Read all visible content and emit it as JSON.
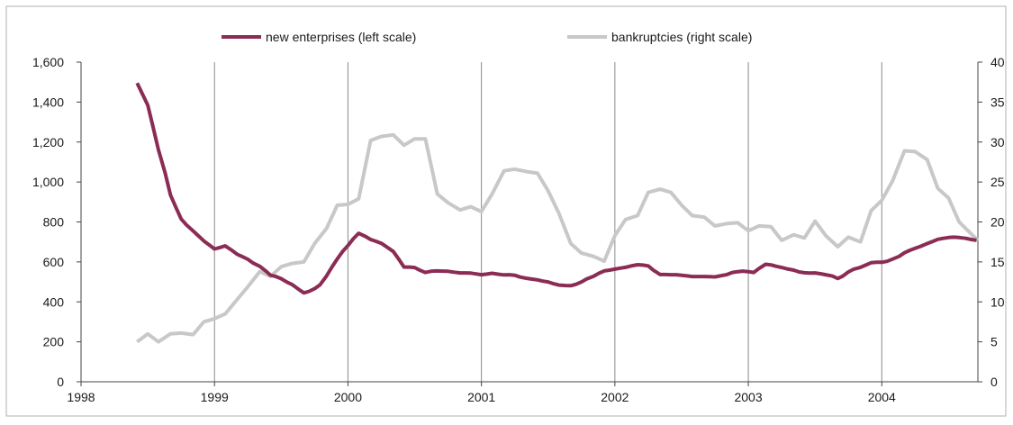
{
  "chart_data": {
    "type": "line",
    "title": "",
    "xlabel": "",
    "ylabel": "",
    "x_ticks": [
      "1998",
      "1999",
      "2000",
      "2001",
      "2002",
      "2003",
      "2004"
    ],
    "xlim": [
      1998.0,
      2004.72
    ],
    "ylim": [
      0,
      1600
    ],
    "y_ticks": [
      "0",
      "200",
      "400",
      "600",
      "800",
      "1,000",
      "1,200",
      "1,400",
      "1,600"
    ],
    "y2lim": [
      0,
      40
    ],
    "y2_ticks": [
      "0",
      "5",
      "10",
      "15",
      "20",
      "25",
      "30",
      "35",
      "40"
    ],
    "grid": "vertical",
    "legend": "top",
    "series": [
      {
        "name": "new enterprises (left scale)",
        "axis": "left",
        "color": "#8b2c55",
        "x": [
          1998.42,
          1998.46,
          1998.5,
          1998.54,
          1998.58,
          1998.63,
          1998.67,
          1998.71,
          1998.75,
          1998.79,
          1998.84,
          1998.88,
          1998.92,
          1998.96,
          1999.0,
          1999.04,
          1999.08,
          1999.13,
          1999.17,
          1999.21,
          1999.25,
          1999.29,
          1999.34,
          1999.38,
          1999.42,
          1999.46,
          1999.5,
          1999.54,
          1999.58,
          1999.63,
          1999.67,
          1999.71,
          1999.75,
          1999.79,
          1999.84,
          1999.88,
          1999.92,
          1999.96,
          2000.0,
          2000.04,
          2000.08,
          2000.13,
          2000.17,
          2000.21,
          2000.25,
          2000.29,
          2000.34,
          2000.38,
          2000.42,
          2000.46,
          2000.5,
          2000.54,
          2000.58,
          2000.63,
          2000.67,
          2000.71,
          2000.75,
          2000.79,
          2000.84,
          2000.88,
          2000.92,
          2000.96,
          2001.0,
          2001.04,
          2001.08,
          2001.13,
          2001.17,
          2001.21,
          2001.25,
          2001.29,
          2001.34,
          2001.38,
          2001.42,
          2001.46,
          2001.5,
          2001.54,
          2001.58,
          2001.63,
          2001.67,
          2001.71,
          2001.75,
          2001.79,
          2001.84,
          2001.88,
          2001.92,
          2001.96,
          2002.0,
          2002.04,
          2002.08,
          2002.13,
          2002.17,
          2002.21,
          2002.25,
          2002.29,
          2002.34,
          2002.38,
          2002.42,
          2002.46,
          2002.5,
          2002.54,
          2002.58,
          2002.63,
          2002.67,
          2002.71,
          2002.75,
          2002.79,
          2002.84,
          2002.88,
          2002.92,
          2002.96,
          2003.0,
          2003.04,
          2003.08,
          2003.13,
          2003.17,
          2003.21,
          2003.25,
          2003.29,
          2003.34,
          2003.38,
          2003.42,
          2003.46,
          2003.5,
          2003.54,
          2003.58,
          2003.63,
          2003.67,
          2003.71,
          2003.75,
          2003.79,
          2003.84,
          2003.88,
          2003.92,
          2003.96,
          2004.0,
          2004.04,
          2004.08,
          2004.13,
          2004.17,
          2004.21,
          2004.25,
          2004.29,
          2004.34,
          2004.38,
          2004.42,
          2004.46,
          2004.5,
          2004.54,
          2004.58,
          2004.63,
          2004.67,
          2004.71
        ],
        "values": [
          1495,
          1440,
          1385,
          1275,
          1160,
          1045,
          935,
          875,
          815,
          785,
          755,
          730,
          705,
          685,
          665,
          672,
          680,
          658,
          638,
          626,
          613,
          594,
          578,
          557,
          533,
          527,
          516,
          500,
          487,
          463,
          445,
          453,
          466,
          485,
          530,
          574,
          615,
          652,
          682,
          716,
          743,
          728,
          712,
          703,
          693,
          675,
          652,
          614,
          574,
          574,
          572,
          558,
          547,
          554,
          555,
          554,
          553,
          549,
          545,
          545,
          544,
          540,
          536,
          539,
          543,
          538,
          535,
          536,
          533,
          524,
          518,
          514,
          510,
          504,
          500,
          491,
          484,
          482,
          481,
          488,
          500,
          515,
          528,
          543,
          555,
          559,
          564,
          569,
          573,
          581,
          586,
          584,
          580,
          558,
          537,
          537,
          536,
          536,
          533,
          530,
          527,
          527,
          527,
          526,
          525,
          530,
          537,
          547,
          551,
          554,
          551,
          547,
          567,
          588,
          585,
          578,
          572,
          565,
          559,
          550,
          546,
          544,
          545,
          541,
          536,
          529,
          517,
          530,
          550,
          564,
          573,
          584,
          596,
          598,
          598,
          603,
          614,
          628,
          646,
          658,
          668,
          678,
          692,
          702,
          713,
          718,
          722,
          724,
          722,
          718,
          712,
          708
        ]
      },
      {
        "name": "bankruptcies (right scale)",
        "axis": "right",
        "color": "#c8c8c8",
        "x": [
          1998.42,
          1998.5,
          1998.58,
          1998.67,
          1998.75,
          1998.84,
          1998.92,
          1999.0,
          1999.08,
          1999.17,
          1999.25,
          1999.34,
          1999.42,
          1999.5,
          1999.58,
          1999.67,
          1999.75,
          1999.84,
          1999.92,
          2000.0,
          2000.08,
          2000.17,
          2000.25,
          2000.34,
          2000.42,
          2000.5,
          2000.58,
          2000.67,
          2000.75,
          2000.84,
          2000.92,
          2001.0,
          2001.08,
          2001.17,
          2001.25,
          2001.34,
          2001.42,
          2001.5,
          2001.58,
          2001.67,
          2001.75,
          2001.84,
          2001.92,
          2002.0,
          2002.08,
          2002.17,
          2002.25,
          2002.34,
          2002.42,
          2002.5,
          2002.58,
          2002.67,
          2002.75,
          2002.84,
          2002.92,
          2003.0,
          2003.08,
          2003.17,
          2003.25,
          2003.34,
          2003.42,
          2003.5,
          2003.58,
          2003.67,
          2003.75,
          2003.84,
          2003.92,
          2004.0,
          2004.08,
          2004.17,
          2004.25,
          2004.34,
          2004.42,
          2004.5,
          2004.58,
          2004.67,
          2004.72
        ],
        "values": [
          5,
          6,
          5,
          6,
          6.1,
          5.9,
          7.5,
          7.9,
          8.5,
          10.3,
          11.9,
          13.8,
          13.2,
          14.4,
          14.8,
          15,
          17.3,
          19.2,
          22.1,
          22.2,
          22.9,
          30.2,
          30.7,
          30.9,
          29.6,
          30.4,
          30.4,
          23.5,
          22.4,
          21.5,
          21.9,
          21.3,
          23.5,
          26.4,
          26.6,
          26.3,
          26.1,
          23.9,
          21.1,
          17.3,
          16.1,
          15.7,
          15.1,
          18.3,
          20.3,
          20.8,
          23.7,
          24.1,
          23.7,
          22.1,
          20.8,
          20.6,
          19.5,
          19.8,
          19.9,
          18.9,
          19.5,
          19.4,
          17.7,
          18.4,
          18,
          20.1,
          18.3,
          16.9,
          18.1,
          17.5,
          21.4,
          22.7,
          25.1,
          28.9,
          28.8,
          27.8,
          24.2,
          23,
          20,
          18.5,
          17.7
        ]
      }
    ]
  }
}
